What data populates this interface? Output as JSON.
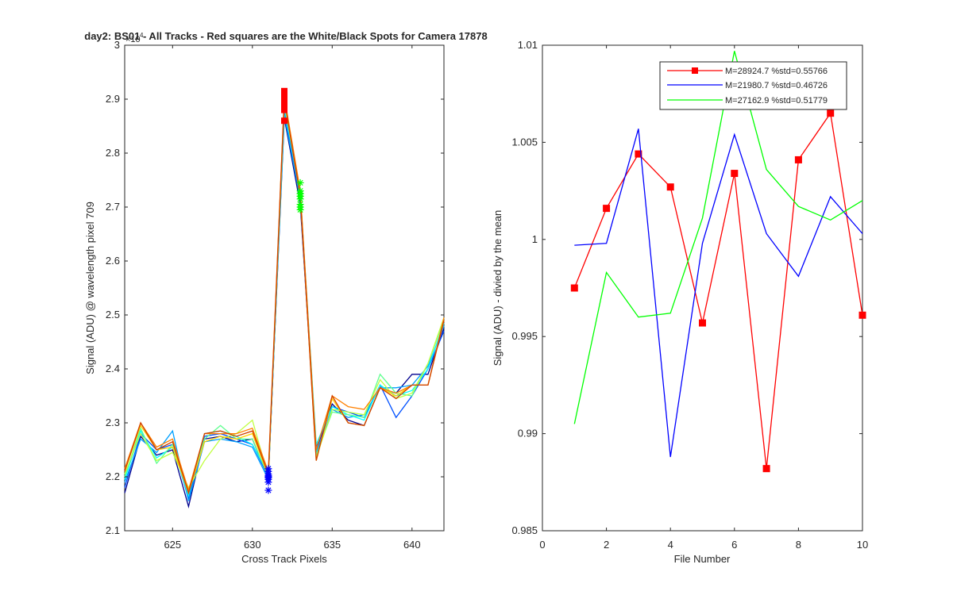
{
  "title": "day2: BS01 - All Tracks - Red squares are the  White/Black Spots for Camera 17878",
  "chart_data": [
    {
      "type": "line",
      "xlabel": "Cross Track Pixels",
      "ylabel": "Signal (ADU) @ wavelength pixel 709",
      "xlim": [
        622,
        642
      ],
      "ylim": [
        21000,
        30000
      ],
      "x_ticks": [
        "625",
        "630",
        "635",
        "640"
      ],
      "y_ticks": [
        "2.1",
        "2.2",
        "2.3",
        "2.4",
        "2.5",
        "2.6",
        "2.7",
        "2.8",
        "2.9",
        "3"
      ],
      "y_exponent": "×10",
      "y_exponent_power": "4",
      "x": [
        622,
        623,
        624,
        625,
        626,
        627,
        628,
        629,
        630,
        631,
        632,
        633,
        634,
        635,
        636,
        637,
        638,
        639,
        640,
        641,
        642
      ],
      "series": [
        {
          "color": "#00008F",
          "values": [
            21700,
            22750,
            22400,
            22500,
            21450,
            22700,
            22750,
            22650,
            22700,
            21980,
            28650,
            27050,
            22500,
            23350,
            23050,
            22950,
            23650,
            23550,
            23900,
            23900,
            24750
          ]
        },
        {
          "color": "#0050FF",
          "values": [
            21800,
            22800,
            22500,
            22600,
            21600,
            22750,
            22800,
            22700,
            22600,
            22000,
            28800,
            27200,
            22550,
            23300,
            23200,
            23100,
            23700,
            23100,
            23500,
            24000,
            24700
          ]
        },
        {
          "color": "#00A0FF",
          "values": [
            21900,
            22700,
            22450,
            22850,
            21550,
            22650,
            22700,
            22650,
            22550,
            21950,
            28700,
            27150,
            22450,
            23250,
            23100,
            23150,
            23650,
            23650,
            23700,
            24050,
            24800
          ]
        },
        {
          "color": "#00FFFF",
          "values": [
            21950,
            22850,
            22350,
            22550,
            21650,
            22800,
            22850,
            22750,
            22600,
            22050,
            28850,
            27250,
            22600,
            23300,
            23150,
            23050,
            23700,
            23500,
            23600,
            24000,
            24850
          ]
        },
        {
          "color": "#60FF90",
          "values": [
            22000,
            22900,
            22250,
            22600,
            21700,
            22700,
            22950,
            22700,
            22700,
            22000,
            28900,
            27300,
            22400,
            23200,
            23150,
            23100,
            23900,
            23550,
            23500,
            24100,
            24900
          ]
        },
        {
          "color": "#C0FF40",
          "values": [
            22050,
            22800,
            22300,
            22450,
            21800,
            22300,
            22700,
            22800,
            23050,
            22000,
            28950,
            27200,
            22350,
            23250,
            23200,
            23150,
            23800,
            23450,
            23550,
            24100,
            24950
          ]
        },
        {
          "color": "#FFD000",
          "values": [
            22100,
            22950,
            22500,
            22550,
            21700,
            22650,
            22750,
            22700,
            22800,
            22020,
            29000,
            27250,
            22300,
            23450,
            23000,
            22950,
            23650,
            23500,
            23700,
            23700,
            24900
          ]
        },
        {
          "color": "#FF8000",
          "values": [
            22150,
            23000,
            22550,
            22700,
            21750,
            22800,
            22800,
            22800,
            22900,
            22100,
            29050,
            27300,
            22500,
            23500,
            23300,
            23250,
            23650,
            23550,
            23700,
            23700,
            24950
          ]
        },
        {
          "color": "#D04000",
          "values": [
            22100,
            23000,
            22500,
            22650,
            21700,
            22800,
            22850,
            22750,
            22850,
            22050,
            29000,
            27200,
            22300,
            23500,
            23000,
            22950,
            23650,
            23450,
            23700,
            23700,
            24900
          ]
        }
      ],
      "marker_points": [
        {
          "x": 632,
          "values": [
            28600,
            28850,
            28900,
            28950,
            29000,
            29050,
            29100,
            29150,
            29100,
            28800
          ],
          "color": "#FF0000",
          "marker": "square"
        },
        {
          "x": 633,
          "values": [
            26950,
            27050,
            27150,
            27200,
            27250,
            27300,
            27450,
            27200,
            27250,
            27000
          ],
          "color": "#00FF00",
          "marker": "star"
        },
        {
          "x": 631,
          "values": [
            21750,
            21950,
            22000,
            22100,
            22150,
            22050,
            21900,
            22000,
            21980,
            22020
          ],
          "color": "#0000FF",
          "marker": "star"
        }
      ]
    },
    {
      "type": "line",
      "xlabel": "File Number",
      "ylabel": "Signal (ADU) - divied by the mean",
      "xlim": [
        0,
        10
      ],
      "ylim": [
        0.985,
        1.01
      ],
      "x_ticks": [
        "0",
        "2",
        "4",
        "6",
        "8",
        "10"
      ],
      "y_ticks": [
        "0.985",
        "0.99",
        "0.995",
        "1",
        "1.005",
        "1.01"
      ],
      "legend_position": "top-right",
      "x": [
        1,
        2,
        3,
        4,
        5,
        6,
        7,
        8,
        9,
        10
      ],
      "series": [
        {
          "name": "M=28924.7 %std=0.55766",
          "color": "#FF0000",
          "marker": "square",
          "values": [
            0.9975,
            1.0016,
            1.0044,
            1.0027,
            0.9957,
            1.0034,
            0.9882,
            1.0041,
            1.0065,
            0.9961
          ]
        },
        {
          "name": "M=21980.7 %std=0.46726",
          "color": "#0000FF",
          "values": [
            0.9997,
            0.9998,
            1.0057,
            0.9888,
            0.9998,
            1.0054,
            1.0003,
            0.9981,
            1.0022,
            1.0003
          ]
        },
        {
          "name": "M=27162.9 %std=0.51779",
          "color": "#00FF00",
          "values": [
            0.9905,
            0.9983,
            0.996,
            0.9962,
            1.0011,
            1.0097,
            1.0036,
            1.0017,
            1.001,
            1.002
          ]
        }
      ]
    }
  ]
}
